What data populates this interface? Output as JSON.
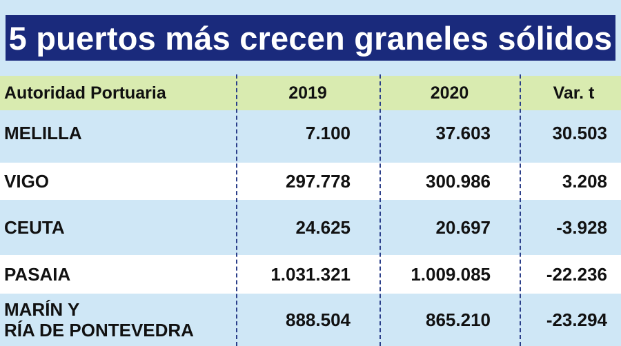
{
  "title": "5 puertos más crecen graneles sólidos",
  "colors": {
    "title_bg": "#1a2a7c",
    "header_bg": "#d9ebb0",
    "row_blue": "#cfe7f6",
    "row_white": "#ffffff",
    "divider": "#2b3f8a"
  },
  "chart_data": {
    "type": "table",
    "title": "5 puertos más crecen graneles sólidos",
    "columns": [
      "Autoridad Portuaria",
      "2019",
      "2020",
      "Var. t"
    ],
    "rows": [
      {
        "name": "MELILLA",
        "y2019": "7.100",
        "y2020": "37.603",
        "var": "30.503"
      },
      {
        "name": "VIGO",
        "y2019": "297.778",
        "y2020": "300.986",
        "var": "3.208"
      },
      {
        "name": "CEUTA",
        "y2019": "24.625",
        "y2020": "20.697",
        "var": "-3.928"
      },
      {
        "name": "PASAIA",
        "y2019": "1.031.321",
        "y2020": "1.009.085",
        "var": "-22.236"
      },
      {
        "name": "MARÍN Y\nRÍA DE PONTEVEDRA",
        "y2019": "888.504",
        "y2020": "865.210",
        "var": "-23.294"
      }
    ]
  }
}
